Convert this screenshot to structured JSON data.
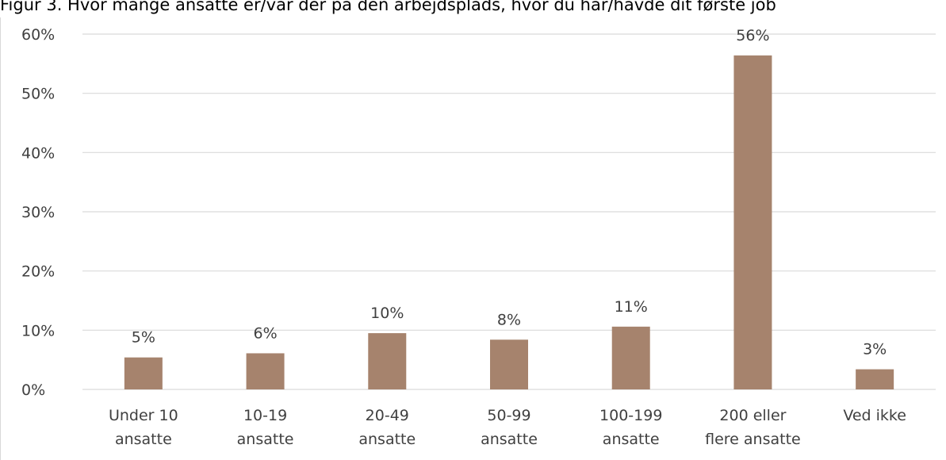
{
  "colors": {
    "bar": "#a6836d",
    "grid": "#d9d9d9",
    "text": "#404040"
  },
  "chart_data": {
    "type": "bar",
    "title": "Figur 3. Hvor mange ansatte er/var der på den arbejdsplads, hvor du har/havde dit første job",
    "categories": [
      [
        "Under 10",
        "ansatte"
      ],
      [
        "10-19",
        "ansatte"
      ],
      [
        "20-49",
        "ansatte"
      ],
      [
        "50-99",
        "ansatte"
      ],
      [
        "100-199",
        "ansatte"
      ],
      [
        "200 eller",
        "flere ansatte"
      ],
      [
        "Ved ikke"
      ]
    ],
    "values": [
      5.4,
      6.1,
      9.5,
      8.4,
      10.6,
      56.4,
      3.4
    ],
    "data_labels": [
      "5%",
      "6%",
      "10%",
      "8%",
      "11%",
      "56%",
      "3%"
    ],
    "ylim": [
      0,
      60
    ],
    "yticks": [
      0,
      10,
      20,
      30,
      40,
      50,
      60
    ],
    "ytick_labels": [
      "0%",
      "10%",
      "20%",
      "30%",
      "40%",
      "50%",
      "60%"
    ],
    "grid": true,
    "legend": "none"
  }
}
